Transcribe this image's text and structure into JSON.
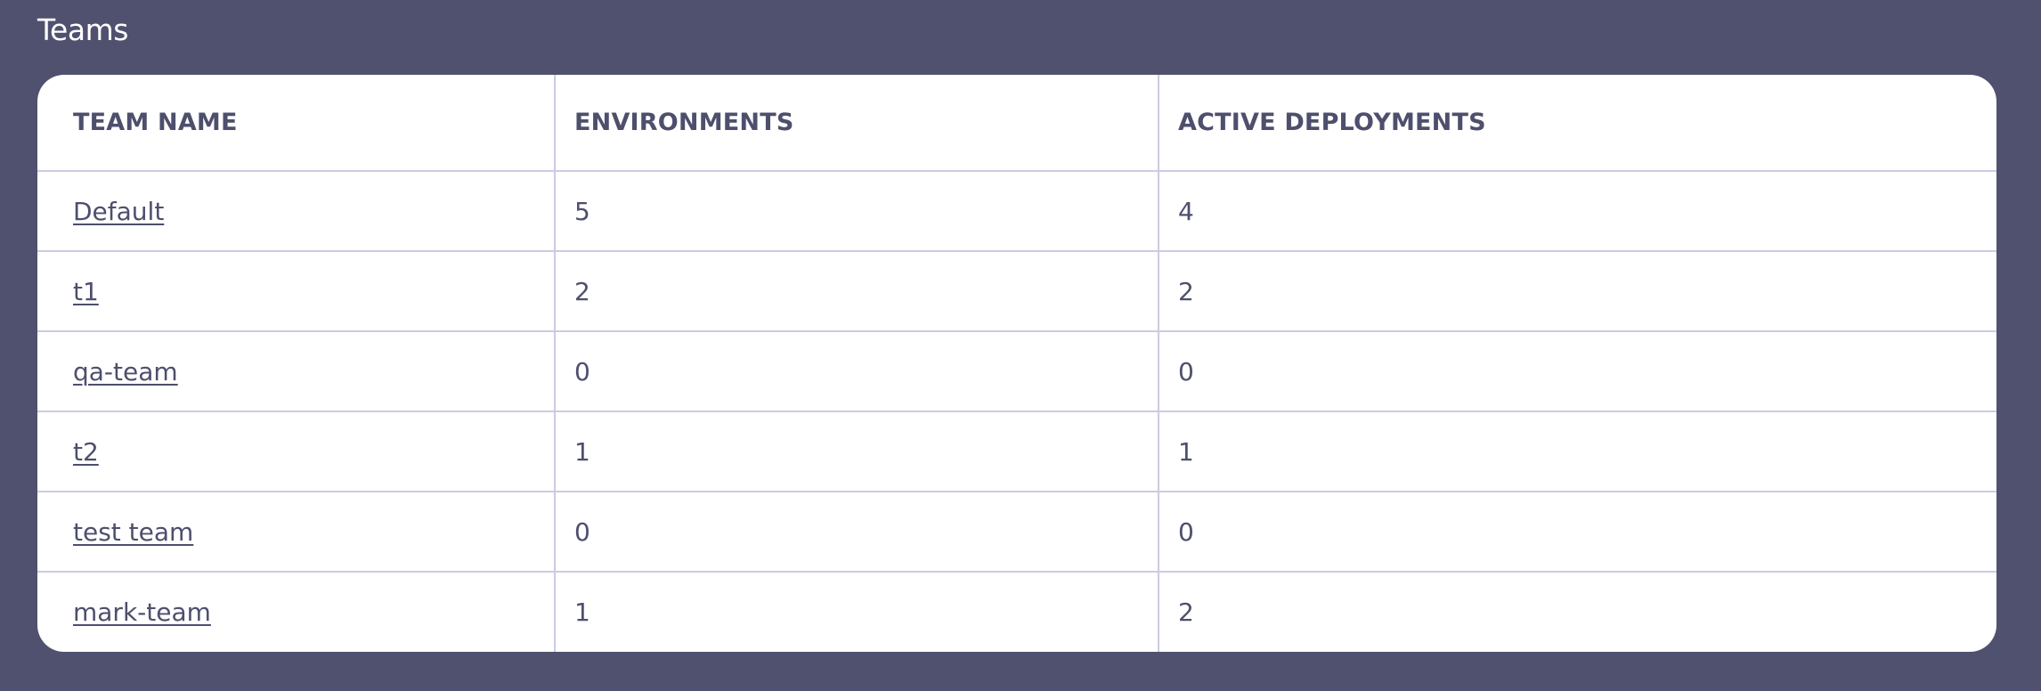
{
  "page": {
    "title": "Teams"
  },
  "table": {
    "headers": {
      "team_name": "TEAM NAME",
      "environments": "ENVIRONMENTS",
      "active_deployments": "ACTIVE DEPLOYMENTS"
    },
    "rows": [
      {
        "team_name": "Default",
        "environments": "5",
        "active_deployments": "4"
      },
      {
        "team_name": "t1",
        "environments": "2",
        "active_deployments": "2"
      },
      {
        "team_name": "qa-team",
        "environments": "0",
        "active_deployments": "0"
      },
      {
        "team_name": "t2",
        "environments": "1",
        "active_deployments": "1"
      },
      {
        "team_name": "test team",
        "environments": "0",
        "active_deployments": "0"
      },
      {
        "team_name": "mark-team",
        "environments": "1",
        "active_deployments": "2"
      }
    ]
  },
  "colors": {
    "background": "#50516f",
    "card": "#ffffff",
    "text": "#4d4f6d",
    "border": "#cccbe3"
  }
}
